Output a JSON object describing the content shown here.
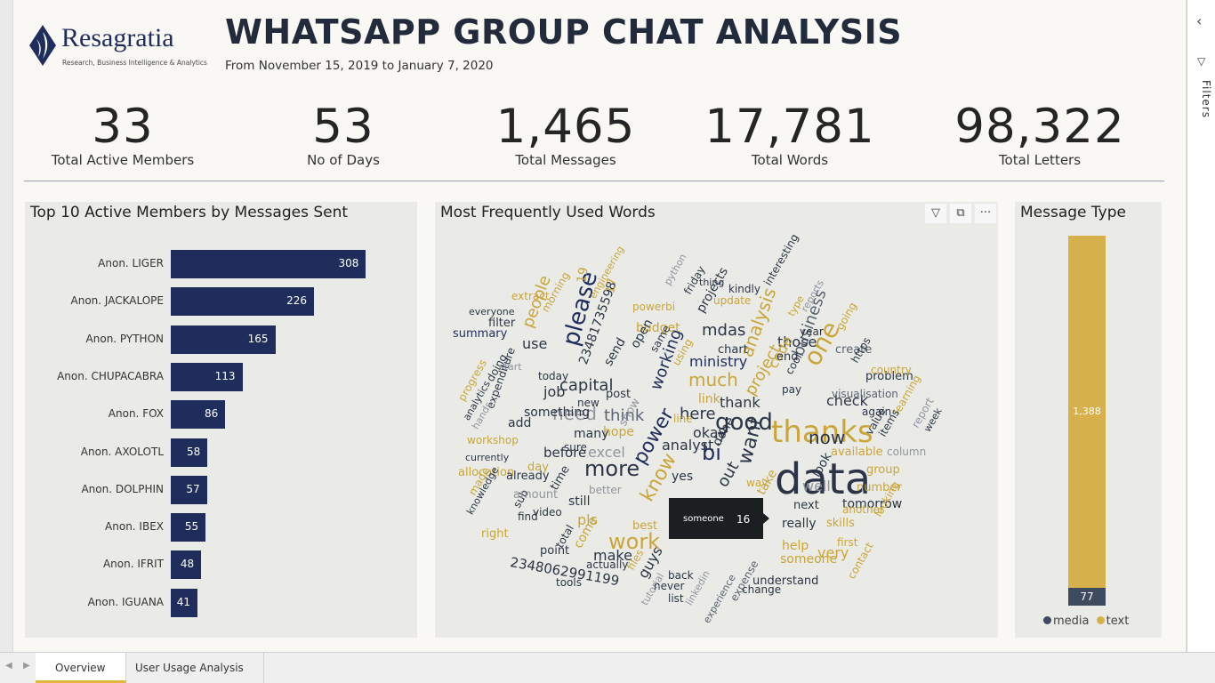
{
  "report": {
    "brand": "Resagratia",
    "brand_tagline": "Research, Business Intelligence & Analytics",
    "title": "WHATSAPP GROUP CHAT ANALYSIS",
    "subtitle": "From November 15, 2019 to January 7, 2020"
  },
  "kpis": [
    {
      "value": "33",
      "label": "Total Active Members"
    },
    {
      "value": "53",
      "label": "No of Days"
    },
    {
      "value": "1,465",
      "label": "Total Messages"
    },
    {
      "value": "17,781",
      "label": "Total Words"
    },
    {
      "value": "98,322",
      "label": "Total Letters"
    }
  ],
  "top_members": {
    "title": "Top 10 Active Members by Messages Sent",
    "bar_color": "#1f2d5c",
    "rows": [
      {
        "name": "Anon. LIGER",
        "value": 308
      },
      {
        "name": "Anon. JACKALOPE",
        "value": 226
      },
      {
        "name": "Anon. PYTHON",
        "value": 165
      },
      {
        "name": "Anon. CHUPACABRA",
        "value": 113
      },
      {
        "name": "Anon. FOX",
        "value": 86
      },
      {
        "name": "Anon. AXOLOTL",
        "value": 58
      },
      {
        "name": "Anon. DOLPHIN",
        "value": 57
      },
      {
        "name": "Anon. IBEX",
        "value": 55
      },
      {
        "name": "Anon. IFRIT",
        "value": 48
      },
      {
        "name": "Anon. IGUANA",
        "value": 41
      }
    ]
  },
  "word_cloud": {
    "title": "Most Frequently Used Words",
    "palette": [
      "#2b3547",
      "#c9a53a",
      "#5a6373",
      "#8f959f",
      "#1f2d5c"
    ],
    "icons": [
      "filter-icon",
      "focus-mode-icon",
      "more-options-icon"
    ],
    "words": [
      "data",
      "thanks",
      "please",
      "good",
      "one",
      "power",
      "more",
      "know",
      "bi",
      "want",
      "analysis",
      "now",
      "work",
      "people",
      "need",
      "think",
      "much",
      "here",
      "ministry",
      "mdas",
      "capital",
      "project",
      "okay",
      "thank",
      "business",
      "job",
      "working",
      "those",
      "check",
      "code",
      "make",
      "really",
      "help",
      "very",
      "tomorrow",
      "well",
      "next",
      "skills",
      "number",
      "group",
      "available",
      "problem",
      "visualisation",
      "create",
      "going",
      "reports",
      "year",
      "type",
      "interesting",
      "kindly",
      "update",
      "thing",
      "python",
      "friday",
      "projects",
      "budget",
      "chart",
      "powerbi",
      "open",
      "send",
      "post",
      "hope",
      "show",
      "excel",
      "better",
      "new",
      "many",
      "sure",
      "before",
      "something",
      "add",
      "workshop",
      "currently",
      "allocation",
      "made",
      "knowledge",
      "right",
      "find",
      "sub",
      "amount",
      "already",
      "time",
      "still",
      "video",
      "total",
      "point",
      "come",
      "actually",
      "tools",
      "guys",
      "tutorial",
      "best",
      "files",
      "never",
      "list",
      "back",
      "linkedin",
      "experience",
      "expense",
      "change",
      "understand",
      "someone",
      "first",
      "another",
      "looking",
      "contact",
      "report",
      "week",
      "learning",
      "column",
      "items",
      "value",
      "again",
      "country",
      "https",
      "cool",
      "pay",
      "end",
      "analyst",
      "yes",
      "look",
      "take",
      "way",
      "done",
      "out",
      "tell",
      "same",
      "using",
      "extract",
      "engineering",
      "everyone",
      "filter",
      "summary",
      "use",
      "morning",
      "today",
      "doing",
      "start",
      "progress",
      "analytics",
      "expenditure",
      "hands",
      "day",
      "2348062991199",
      "23481735598",
      "pls",
      "17",
      "19",
      "link",
      "line"
    ]
  },
  "tooltip": {
    "label": "someone",
    "value": "16"
  },
  "message_type": {
    "title": "Message Type",
    "series": [
      {
        "name": "text",
        "value": 1388,
        "label": "1,388",
        "color": "#d6b04b"
      },
      {
        "name": "media",
        "value": 77,
        "label": "77",
        "color": "#3e4a5e"
      }
    ],
    "legend": [
      "media",
      "text"
    ]
  },
  "tabs": [
    {
      "label": "Overview",
      "active": true
    },
    {
      "label": "User Usage Analysis",
      "active": false
    }
  ],
  "filters_pane": {
    "label": "Filters"
  }
}
